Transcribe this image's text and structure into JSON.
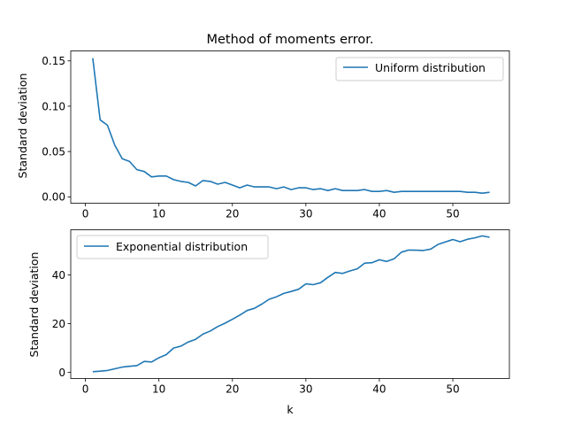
{
  "chart_data": [
    {
      "type": "line",
      "title": "Method of moments error.",
      "xlabel": "",
      "ylabel": "Standard deviation",
      "xlim": [
        -2,
        57.7
      ],
      "ylim": [
        -0.007,
        0.161
      ],
      "xticks": [
        0,
        10,
        20,
        30,
        40,
        50
      ],
      "xtick_labels": [
        "0",
        "10",
        "20",
        "30",
        "40",
        "50"
      ],
      "yticks": [
        0.0,
        0.05,
        0.1,
        0.15
      ],
      "ytick_labels": [
        "0.00",
        "0.05",
        "0.10",
        "0.15"
      ],
      "grid": false,
      "legend": "top-right",
      "series": [
        {
          "name": "Uniform distribution",
          "color": "#1f77b4",
          "x": [
            1,
            2,
            3,
            4,
            5,
            6,
            7,
            8,
            9,
            10,
            11,
            12,
            13,
            14,
            15,
            16,
            17,
            18,
            19,
            20,
            21,
            22,
            23,
            24,
            25,
            26,
            27,
            28,
            29,
            30,
            31,
            32,
            33,
            34,
            35,
            36,
            37,
            38,
            39,
            40,
            41,
            42,
            43,
            44,
            45,
            46,
            47,
            48,
            49,
            50,
            51,
            52,
            53,
            54,
            55
          ],
          "y": [
            0.153,
            0.085,
            0.079,
            0.057,
            0.042,
            0.039,
            0.03,
            0.028,
            0.022,
            0.023,
            0.023,
            0.019,
            0.017,
            0.016,
            0.012,
            0.018,
            0.017,
            0.014,
            0.016,
            0.013,
            0.01,
            0.013,
            0.011,
            0.011,
            0.011,
            0.009,
            0.011,
            0.008,
            0.01,
            0.01,
            0.008,
            0.009,
            0.007,
            0.009,
            0.007,
            0.007,
            0.007,
            0.008,
            0.006,
            0.006,
            0.007,
            0.005,
            0.006,
            0.006,
            0.006,
            0.006,
            0.006,
            0.006,
            0.006,
            0.006,
            0.006,
            0.005,
            0.005,
            0.004,
            0.005
          ]
        }
      ]
    },
    {
      "type": "line",
      "title": "",
      "xlabel": "k",
      "ylabel": "Standard deviation",
      "xlim": [
        -2,
        57.7
      ],
      "ylim": [
        -2.5,
        58.5
      ],
      "xticks": [
        0,
        10,
        20,
        30,
        40,
        50
      ],
      "xtick_labels": [
        "0",
        "10",
        "20",
        "30",
        "40",
        "50"
      ],
      "yticks": [
        0,
        20,
        40
      ],
      "ytick_labels": [
        "0",
        "20",
        "40"
      ],
      "grid": false,
      "legend": "top-left",
      "series": [
        {
          "name": "Exponential distribution",
          "color": "#1f77b4",
          "x": [
            1,
            2,
            3,
            4,
            5,
            6,
            7,
            8,
            9,
            10,
            11,
            12,
            13,
            14,
            15,
            16,
            17,
            18,
            19,
            20,
            21,
            22,
            23,
            24,
            25,
            26,
            27,
            28,
            29,
            30,
            31,
            32,
            33,
            34,
            35,
            36,
            37,
            38,
            39,
            40,
            41,
            42,
            43,
            44,
            45,
            46,
            47,
            48,
            49,
            50,
            51,
            52,
            53,
            54,
            55
          ],
          "y": [
            0.3,
            0.5,
            0.8,
            1.5,
            2.2,
            2.5,
            2.8,
            4.5,
            4.3,
            6.0,
            7.3,
            10.0,
            10.8,
            12.5,
            13.6,
            15.7,
            17.0,
            18.8,
            20.2,
            21.8,
            23.5,
            25.4,
            26.3,
            28.0,
            30.0,
            31.0,
            32.4,
            33.2,
            34.1,
            36.3,
            36.0,
            36.8,
            39.0,
            41.0,
            40.6,
            41.6,
            42.5,
            44.8,
            45.0,
            46.2,
            45.5,
            46.6,
            49.3,
            50.2,
            50.1,
            50.0,
            50.6,
            52.5,
            53.5,
            54.5,
            53.6,
            54.6,
            55.2,
            56.0,
            55.4
          ]
        }
      ]
    }
  ]
}
